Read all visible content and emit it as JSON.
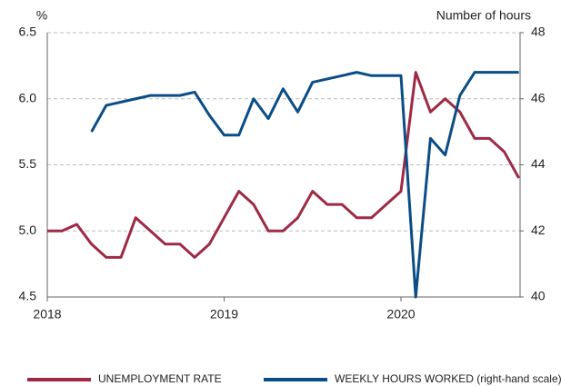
{
  "chart_data": {
    "type": "line",
    "left_axis_label": "%",
    "right_axis_label": "Number of hours",
    "categories": [
      "2018",
      null,
      null,
      null,
      null,
      null,
      null,
      null,
      null,
      null,
      null,
      null,
      "2019",
      null,
      null,
      null,
      null,
      null,
      null,
      null,
      null,
      null,
      null,
      null,
      "2020",
      null,
      null,
      null,
      null,
      null,
      null,
      null,
      null
    ],
    "series": [
      {
        "name": "UNEMPLOYMENT RATE",
        "color": "#9e2a45",
        "axis": "y",
        "values": [
          5.0,
          5.0,
          5.05,
          4.9,
          4.8,
          4.8,
          5.1,
          5.0,
          4.9,
          4.9,
          4.8,
          4.9,
          5.1,
          5.3,
          5.2,
          5.0,
          5.0,
          5.1,
          5.3,
          5.2,
          5.2,
          5.1,
          5.1,
          5.2,
          5.3,
          6.2,
          5.9,
          6.0,
          5.9,
          5.7,
          5.7,
          5.6,
          5.4
        ]
      },
      {
        "name": "WEEKLY HOURS WORKED (right-hand scale)",
        "color": "#0b4d86",
        "axis": "y2",
        "values": [
          null,
          null,
          null,
          45.0,
          45.8,
          45.9,
          46.0,
          46.1,
          46.1,
          46.1,
          46.2,
          45.5,
          44.9,
          44.9,
          46.0,
          45.4,
          46.3,
          45.6,
          46.5,
          46.6,
          46.7,
          46.8,
          46.7,
          46.7,
          46.7,
          40.0,
          44.8,
          44.3,
          46.1,
          46.8,
          46.8,
          46.8,
          46.8
        ]
      }
    ],
    "ylim": [
      4.5,
      6.5
    ],
    "yticks": [
      4.5,
      {
        "value": 5,
        "label": "5.0"
      },
      5.5,
      {
        "value": 6,
        "label": "6.0"
      },
      6.5
    ],
    "y2lim": [
      40,
      48
    ],
    "y2ticks": [
      40,
      42,
      44,
      46,
      48
    ],
    "grid": true,
    "legend": "bottom"
  }
}
